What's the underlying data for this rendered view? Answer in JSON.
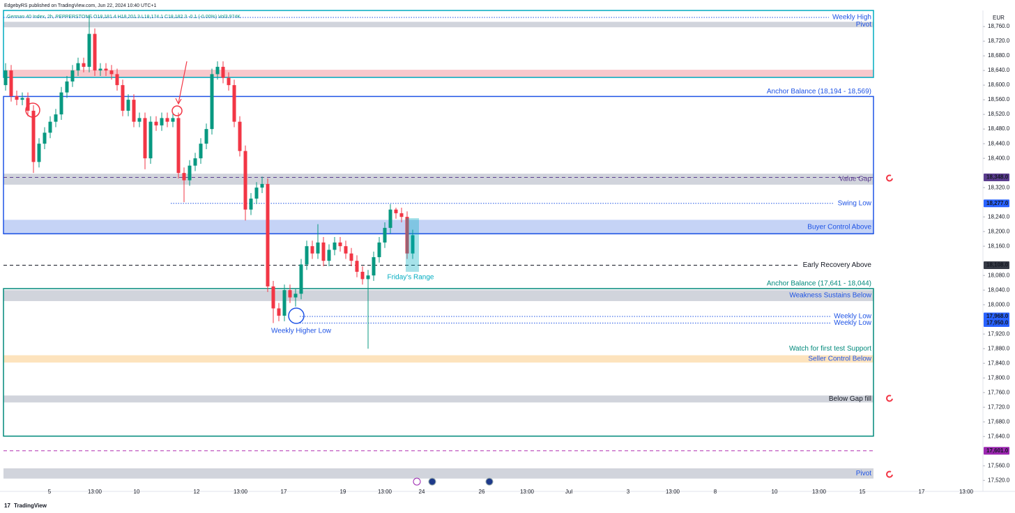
{
  "header": {
    "publisher": "EdgebyRS published on TradingView.com, Jun 22, 2024 10:40 UTC+1",
    "symbol": "German 40 Index, 2h, PEPPERSTONE O18,181.4 H18,201.3 L18,174.1 C18,182.3 -0.1 (-0.00%) Vol3.974K"
  },
  "footer": {
    "brand": "TradingView"
  },
  "chart_data": {
    "type": "candlestick",
    "currency": "EUR",
    "up_color": "#089981",
    "down_color": "#f23645",
    "ylim": [
      17490,
      18804
    ],
    "yticks": [
      {
        "value": 18760,
        "label": "18,760.0"
      },
      {
        "value": 18720,
        "label": "18,720.0"
      },
      {
        "value": 18680,
        "label": "18,680.0"
      },
      {
        "value": 18640,
        "label": "18,640.0"
      },
      {
        "value": 18600,
        "label": "18,600.0"
      },
      {
        "value": 18560,
        "label": "18,560.0"
      },
      {
        "value": 18520,
        "label": "18,520.0"
      },
      {
        "value": 18480,
        "label": "18,480.0"
      },
      {
        "value": 18440,
        "label": "18,440.0"
      },
      {
        "value": 18400,
        "label": "18,400.0"
      },
      {
        "value": 18320,
        "label": "18,320.0"
      },
      {
        "value": 18240,
        "label": "18,240.0"
      },
      {
        "value": 18200,
        "label": "18,200.0"
      },
      {
        "value": 18160,
        "label": "18,160.0"
      },
      {
        "value": 18080,
        "label": "18,080.0"
      },
      {
        "value": 18040,
        "label": "18,040.0"
      },
      {
        "value": 18000,
        "label": "18,000.0"
      },
      {
        "value": 17920,
        "label": "17,920.0"
      },
      {
        "value": 17880,
        "label": "17,880.0"
      },
      {
        "value": 17840,
        "label": "17,840.0"
      },
      {
        "value": 17800,
        "label": "17,800.0"
      },
      {
        "value": 17760,
        "label": "17,760.0"
      },
      {
        "value": 17720,
        "label": "17,720.0"
      },
      {
        "value": 17680,
        "label": "17,680.0"
      },
      {
        "value": 17640,
        "label": "17,640.0"
      },
      {
        "value": 17560,
        "label": "17,560.0"
      },
      {
        "value": 17520,
        "label": "17,520.0"
      }
    ],
    "xlabels": [
      "5",
      "13:00",
      "10",
      "12",
      "13:00",
      "17",
      "19",
      "13:00",
      "24",
      "26",
      "13:00",
      "Jul",
      "3",
      "13:00",
      "8",
      "10",
      "13:00",
      "15",
      "17",
      "13:00"
    ],
    "open": [
      18600,
      18640,
      18570,
      18560,
      18565,
      18530,
      18390,
      18440,
      18470,
      18500,
      18520,
      18580,
      18610,
      18640,
      18660,
      18650,
      18740,
      18640,
      18645,
      18640,
      18630,
      18600,
      18530,
      18560,
      18500,
      18510,
      18400,
      18500,
      18490,
      18510,
      18500,
      18510,
      18360,
      18340,
      18380,
      18400,
      18440,
      18480,
      18630,
      18650,
      18620,
      18600,
      18500,
      18420,
      18260,
      18290,
      18320,
      18330,
      18050,
      17990,
      17970,
      18040,
      18020,
      18030,
      18110,
      18160,
      18140,
      18170,
      18120,
      18150,
      18170,
      18160,
      18140,
      18120,
      18090,
      18070,
      18080,
      18130,
      18170,
      18210,
      18260,
      18250,
      18240,
      18140
    ],
    "high": [
      18660,
      18655,
      18585,
      18580,
      18580,
      18545,
      18455,
      18485,
      18515,
      18535,
      18595,
      18625,
      18655,
      18675,
      18675,
      18790,
      18755,
      18660,
      18660,
      18655,
      18645,
      18615,
      18575,
      18575,
      18525,
      18525,
      18515,
      18515,
      18525,
      18525,
      18525,
      18525,
      18375,
      18395,
      18415,
      18455,
      18495,
      18645,
      18665,
      18665,
      18635,
      18615,
      18515,
      18435,
      18305,
      18335,
      18350,
      18345,
      18065,
      18005,
      18055,
      18055,
      18045,
      18125,
      18175,
      18175,
      18220,
      18185,
      18165,
      18185,
      18185,
      18175,
      18155,
      18135,
      18105,
      18095,
      18145,
      18185,
      18225,
      18275,
      18265,
      18265,
      18255,
      18205
    ],
    "low": [
      18585,
      18555,
      18545,
      18545,
      18515,
      18360,
      18375,
      18425,
      18455,
      18485,
      18505,
      18565,
      18595,
      18625,
      18635,
      18635,
      18625,
      18625,
      18625,
      18615,
      18585,
      18515,
      18515,
      18485,
      18485,
      18370,
      18385,
      18475,
      18475,
      18485,
      18485,
      18345,
      18280,
      18325,
      18365,
      18385,
      18425,
      18465,
      18615,
      18605,
      18585,
      18485,
      18405,
      18230,
      18245,
      18275,
      18305,
      18035,
      17950,
      17955,
      17955,
      18005,
      17995,
      18015,
      18095,
      18125,
      18125,
      18105,
      18105,
      18135,
      18145,
      18125,
      18105,
      18075,
      18055,
      17880,
      18065,
      18115,
      18155,
      18195,
      18235,
      18225,
      18125,
      18125
    ],
    "close": [
      18640,
      18570,
      18560,
      18565,
      18530,
      18390,
      18440,
      18470,
      18500,
      18520,
      18580,
      18610,
      18640,
      18660,
      18650,
      18740,
      18640,
      18645,
      18640,
      18630,
      18600,
      18530,
      18560,
      18500,
      18510,
      18400,
      18500,
      18490,
      18510,
      18500,
      18510,
      18360,
      18340,
      18380,
      18400,
      18440,
      18480,
      18630,
      18650,
      18620,
      18600,
      18500,
      18420,
      18260,
      18290,
      18320,
      18330,
      18050,
      17990,
      17970,
      18040,
      18020,
      18030,
      18110,
      18160,
      18140,
      18170,
      18120,
      18150,
      18170,
      18160,
      18140,
      18120,
      18090,
      18070,
      18080,
      18130,
      18170,
      18210,
      18260,
      18250,
      18240,
      18140,
      18190
    ],
    "boxes": [
      {
        "upper": 18804,
        "lower": 18621,
        "color": "#00acc1"
      },
      {
        "label": "Anchor Balance (18,194 - 18,569)",
        "upper": 18569,
        "lower": 18194,
        "color": "#1e53e5"
      },
      {
        "label": "Anchor Balance (17,641 - 18,044)",
        "upper": 18044,
        "lower": 17641,
        "color": "#00897b"
      }
    ],
    "zones": [
      {
        "label": "Pivot",
        "upper": 18773,
        "lower": 18758,
        "color": "#d1d4dc",
        "text_color": "#1e53e5"
      },
      {
        "upper": 18642,
        "lower": 18621,
        "color": "#f8c8cc"
      },
      {
        "label": "Value Gap",
        "upper": 18358,
        "lower": 18328,
        "color": "#d1d4dc",
        "text_color": "#5b3d8f"
      },
      {
        "label": "Buyer Control Above",
        "upper": 18232,
        "lower": 18192,
        "color": "#c5d3f6",
        "text_color": "#1e53e5"
      },
      {
        "label": "Weakness Sustains Below",
        "upper": 18040,
        "lower": 18010,
        "color": "#d1d4dc",
        "text_color": "#1e53e5"
      },
      {
        "label": "Seller Control Below",
        "upper": 17862,
        "lower": 17842,
        "color": "#fde3bd",
        "text_color": "#1e53e5"
      },
      {
        "label": "Below Gap fill",
        "upper": 17752,
        "lower": 17733,
        "color": "#d1d4dc",
        "text_color": "#131722"
      },
      {
        "label": "Pivot",
        "upper": 17553,
        "lower": 17525,
        "color": "#d1d4dc",
        "text_color": "#1e53e5"
      }
    ],
    "levels": [
      {
        "label": "Weekly High",
        "value": 18785,
        "color": "#1e53e5",
        "style": "dotted"
      },
      {
        "value": 18348,
        "color": "#5b3d8f",
        "style": "dashed"
      },
      {
        "label": "Swing Low",
        "value": 18277,
        "color": "#1e53e5",
        "style": "dotted"
      },
      {
        "label": "Early Recovery Above",
        "value": 18108,
        "color": "#131722",
        "style": "dashed"
      },
      {
        "label": "Weekly Low",
        "value": 17968,
        "color": "#1e53e5",
        "style": "dotted"
      },
      {
        "label": "Weekly Low",
        "value": 17950,
        "color": "#1e53e5",
        "style": "dotted"
      },
      {
        "value": 17601,
        "color": "#b02fb0",
        "style": "dashed"
      }
    ],
    "annotations": [
      {
        "text": "Watch for first test Support",
        "value": 17880,
        "color": "#00897b"
      },
      {
        "text": "Friday's Range",
        "color": "#00acc1"
      },
      {
        "text": "Weekly Higher Low",
        "color": "#1e53e5"
      }
    ],
    "price_labels": [
      {
        "value": 18348,
        "label": "18,348.0",
        "color": "#5b3d8f"
      },
      {
        "value": 18277,
        "label": "18,277.0",
        "color": "#2962ff"
      },
      {
        "value": 18108,
        "label": "18,108.0",
        "color": "#363a45"
      },
      {
        "value": 17968,
        "label": "17,968.0",
        "color": "#2962ff"
      },
      {
        "value": 17950,
        "label": "17,950.0",
        "color": "#2962ff"
      },
      {
        "value": 17601,
        "label": "17,601.0",
        "color": "#9c27b0"
      }
    ]
  }
}
